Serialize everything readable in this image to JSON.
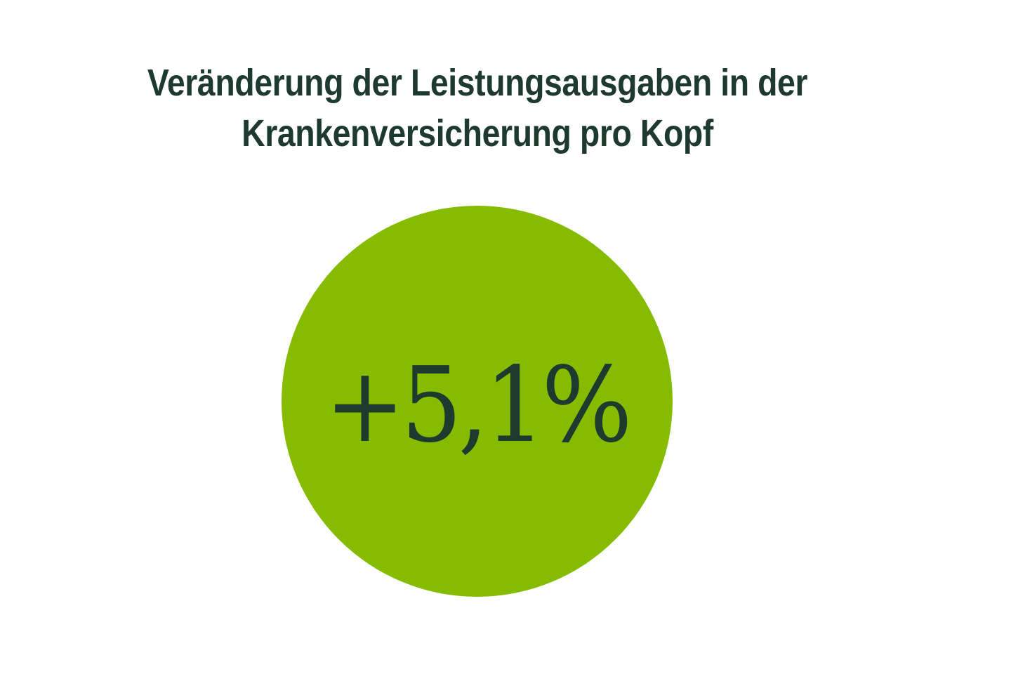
{
  "chart_data": {
    "type": "table",
    "title": "Veränderung der Leistungsausgaben in der Krankenversicherung pro Kopf",
    "title_lines": [
      "Veränderung der Leistungsausgaben in der",
      "Krankenversicherung pro Kopf"
    ],
    "categories": [
      "Leistungsausgaben pro Kopf"
    ],
    "values": [
      5.1
    ],
    "unit": "%",
    "display_value": "+5,1%",
    "xlabel": "",
    "ylabel": "",
    "legend": [],
    "grid": false
  },
  "colors": {
    "circle_fill": "#86bc00",
    "text": "#1e3a2f",
    "background": "#ffffff"
  }
}
